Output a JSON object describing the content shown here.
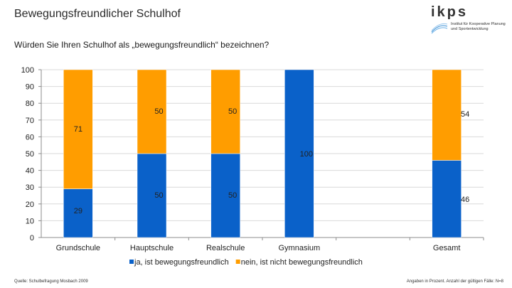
{
  "header": {
    "title": "Bewegungsfreundlicher Schulhof",
    "question": "Würden Sie Ihren Schulhof als „bewegungsfreundlich“ bezeichnen?"
  },
  "logo": {
    "word": "ikps",
    "subtitle_line1": "Institut für Kooperative Planung",
    "subtitle_line2": "und Sportentwicklung"
  },
  "footer": {
    "source": "Quelle: Schulbefragung Mosbach 2009",
    "note": "Angaben in Prozent. Anzahl der gültigen Fälle: N=8"
  },
  "colors": {
    "blue": "#0a61c9",
    "orange": "#ff9d00",
    "grid": "#d9d9d9",
    "axis": "#8c8c8c"
  },
  "chart_data": {
    "type": "bar",
    "stacked": true,
    "title": "",
    "xlabel": "",
    "ylabel": "",
    "ylim": [
      0,
      100
    ],
    "yticks": [
      0,
      10,
      20,
      30,
      40,
      50,
      60,
      70,
      80,
      90,
      100
    ],
    "grid": true,
    "legend_position": "bottom",
    "slots": [
      "Grundschule",
      "Hauptschule",
      "Realschule",
      "Gymnasium",
      "",
      "Gesamt"
    ],
    "categories": [
      "Grundschule",
      "Hauptschule",
      "Realschule",
      "Gymnasium",
      "Gesamt"
    ],
    "series": [
      {
        "name": "ja, ist bewegungsfreundlich",
        "color": "#0a61c9",
        "values": [
          29,
          50,
          50,
          100,
          46
        ],
        "labels": [
          "29",
          "50",
          "50",
          "100",
          "46"
        ]
      },
      {
        "name": "nein, ist nicht bewegungsfreundlich",
        "color": "#ff9d00",
        "values": [
          71,
          50,
          50,
          0,
          54
        ],
        "labels": [
          "71",
          "50",
          "50",
          "",
          "54"
        ]
      }
    ]
  }
}
